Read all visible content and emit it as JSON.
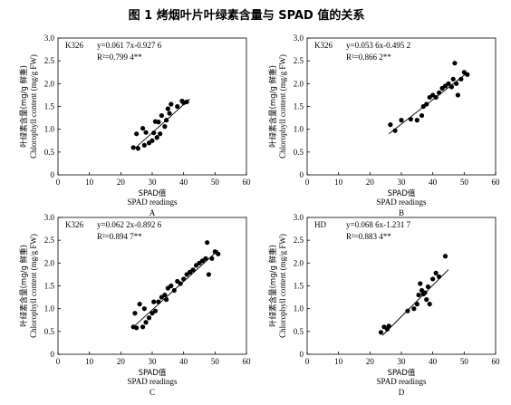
{
  "figure_title": "图 1 烤烟叶片叶绿素含量与 SPAD 值的关系",
  "chart_data": [
    {
      "type": "scatter",
      "panel_label": "A",
      "series_label": "K326",
      "equation": "y=0.061 7x-0.927 6",
      "r2": "R²=0.799 4**",
      "ylabel_cn": "叶绿素含量(mg/g 鲜重)",
      "ylabel_en": "Chlorophyll content (mg/g FW)",
      "xlabel_cn": "SPAD值",
      "xlabel_en": "SPAD readings",
      "xlim": [
        0,
        60
      ],
      "ylim": [
        0,
        3.0
      ],
      "xticks": [
        0,
        10,
        20,
        30,
        40,
        50,
        60
      ],
      "yticks": [
        0,
        0.5,
        1.0,
        1.5,
        2.0,
        2.5,
        3.0
      ],
      "slope": 0.0617,
      "intercept": -0.9276,
      "line_x": [
        24,
        42
      ],
      "points": [
        [
          24,
          0.6
        ],
        [
          25,
          0.9
        ],
        [
          25.5,
          0.58
        ],
        [
          27,
          1.02
        ],
        [
          27.5,
          0.65
        ],
        [
          28,
          0.93
        ],
        [
          29,
          0.7
        ],
        [
          30,
          0.75
        ],
        [
          30.5,
          0.92
        ],
        [
          31,
          1.17
        ],
        [
          31.5,
          0.82
        ],
        [
          32,
          1.16
        ],
        [
          32.5,
          0.9
        ],
        [
          33,
          1.3
        ],
        [
          34,
          1.06
        ],
        [
          34.5,
          1.2
        ],
        [
          35,
          1.45
        ],
        [
          35.5,
          1.35
        ],
        [
          36,
          1.55
        ],
        [
          38,
          1.5
        ],
        [
          39.5,
          1.62
        ],
        [
          40,
          1.58
        ],
        [
          41,
          1.6
        ]
      ]
    },
    {
      "type": "scatter",
      "panel_label": "B",
      "series_label": "K326",
      "equation": "y=0.053 6x-0.495 2",
      "r2": "R²=0.866 2**",
      "ylabel_cn": "叶绿素含量(mg/g 鲜重)",
      "ylabel_en": "Chlorophyll content (mg/g FW)",
      "xlabel_cn": "SPAD值",
      "xlabel_en": "SPAD readings",
      "xlim": [
        0,
        60
      ],
      "ylim": [
        0,
        3.0
      ],
      "xticks": [
        0,
        10,
        20,
        30,
        40,
        50,
        60
      ],
      "yticks": [
        0,
        0.5,
        1.0,
        1.5,
        2.0,
        2.5,
        3.0
      ],
      "slope": 0.0536,
      "intercept": -0.4952,
      "line_x": [
        26,
        51
      ],
      "points": [
        [
          26.5,
          1.1
        ],
        [
          28,
          0.97
        ],
        [
          30,
          1.2
        ],
        [
          33,
          1.22
        ],
        [
          35,
          1.2
        ],
        [
          36.5,
          1.3
        ],
        [
          37,
          1.5
        ],
        [
          38,
          1.55
        ],
        [
          39,
          1.7
        ],
        [
          40,
          1.75
        ],
        [
          41,
          1.7
        ],
        [
          42,
          1.8
        ],
        [
          43,
          1.9
        ],
        [
          44,
          1.95
        ],
        [
          45,
          2.0
        ],
        [
          46,
          1.93
        ],
        [
          46.5,
          2.1
        ],
        [
          47,
          2.45
        ],
        [
          47.5,
          2.0
        ],
        [
          48,
          1.75
        ],
        [
          49,
          2.1
        ],
        [
          50,
          2.25
        ],
        [
          51,
          2.2
        ]
      ]
    },
    {
      "type": "scatter",
      "panel_label": "C",
      "series_label": "K326",
      "equation": "y=0.062 2x-0.892 6",
      "r2": "R²=0.894 7**",
      "ylabel_cn": "叶绿素含量(mg/g 鲜重)",
      "ylabel_en": "Chlorophyll content (mg/g FW)",
      "xlabel_cn": "SPAD值",
      "xlabel_en": "SPAD readings",
      "xlim": [
        0,
        60
      ],
      "ylim": [
        0,
        3.0
      ],
      "xticks": [
        0,
        10,
        20,
        30,
        40,
        50,
        60
      ],
      "yticks": [
        0,
        0.5,
        1.0,
        1.5,
        2.0,
        2.5,
        3.0
      ],
      "slope": 0.0622,
      "intercept": -0.8926,
      "line_x": [
        24,
        51
      ],
      "points": [
        [
          24,
          0.6
        ],
        [
          24.5,
          0.9
        ],
        [
          25,
          0.58
        ],
        [
          26,
          1.1
        ],
        [
          27,
          0.6
        ],
        [
          27.5,
          1.0
        ],
        [
          28,
          0.7
        ],
        [
          29,
          0.8
        ],
        [
          30,
          0.9
        ],
        [
          30.5,
          1.15
        ],
        [
          31,
          0.95
        ],
        [
          32,
          1.15
        ],
        [
          33,
          1.25
        ],
        [
          34,
          1.3
        ],
        [
          34.5,
          1.2
        ],
        [
          35,
          1.45
        ],
        [
          36,
          1.5
        ],
        [
          37,
          1.4
        ],
        [
          38,
          1.6
        ],
        [
          39,
          1.55
        ],
        [
          40,
          1.65
        ],
        [
          41,
          1.75
        ],
        [
          42,
          1.8
        ],
        [
          43,
          1.85
        ],
        [
          44,
          1.95
        ],
        [
          45,
          2.0
        ],
        [
          46,
          2.05
        ],
        [
          47,
          2.1
        ],
        [
          47.5,
          2.45
        ],
        [
          48,
          1.75
        ],
        [
          49,
          2.1
        ],
        [
          50,
          2.25
        ],
        [
          51,
          2.2
        ]
      ]
    },
    {
      "type": "scatter",
      "panel_label": "D",
      "series_label": "HD",
      "equation": "y=0.068 6x-1.231 7",
      "r2": "R²=0.883 4**",
      "ylabel_cn": "叶绿素含量(mg/g 鲜重)",
      "ylabel_en": "Chlorophyll content (mg/g FW)",
      "xlabel_cn": "SPAD值",
      "xlabel_en": "SPAD readings",
      "xlim": [
        0,
        60
      ],
      "ylim": [
        0,
        3.0
      ],
      "xticks": [
        0,
        10,
        20,
        30,
        40,
        50,
        60
      ],
      "yticks": [
        0,
        0.5,
        1.0,
        1.5,
        2.0,
        2.5,
        3.0
      ],
      "slope": 0.0686,
      "intercept": -1.2317,
      "line_x": [
        24,
        45
      ],
      "points": [
        [
          23.5,
          0.48
        ],
        [
          24.5,
          0.6
        ],
        [
          25.5,
          0.55
        ],
        [
          26,
          0.62
        ],
        [
          32,
          0.95
        ],
        [
          34,
          1.0
        ],
        [
          35,
          1.1
        ],
        [
          35.5,
          1.3
        ],
        [
          36,
          1.55
        ],
        [
          36.5,
          1.4
        ],
        [
          37,
          1.32
        ],
        [
          37.5,
          1.35
        ],
        [
          38,
          1.2
        ],
        [
          38.5,
          1.48
        ],
        [
          39,
          1.1
        ],
        [
          40,
          1.65
        ],
        [
          41,
          1.78
        ],
        [
          42,
          1.7
        ],
        [
          44,
          2.15
        ]
      ]
    }
  ]
}
